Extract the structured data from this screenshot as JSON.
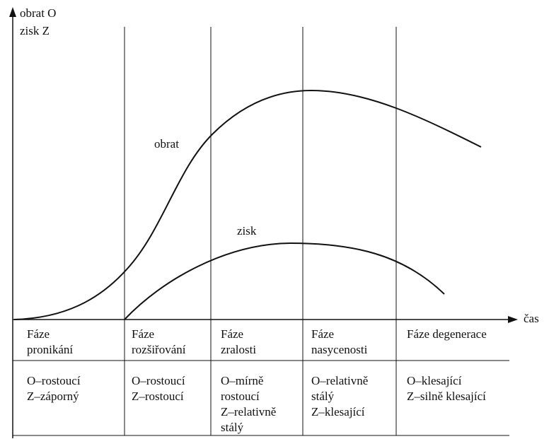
{
  "axes": {
    "y_label": [
      "obrat O",
      "zisk Z"
    ],
    "x_label": "čas"
  },
  "curves": {
    "revenue": "obrat",
    "profit": "zisk"
  },
  "phases": [
    {
      "name": [
        "Fáze",
        "pronikání"
      ],
      "description": [
        "O–rostoucí",
        "Z–záporný"
      ]
    },
    {
      "name": [
        "Fáze",
        "rozšiřování"
      ],
      "description": [
        "O–rostoucí",
        "Z–rostoucí"
      ]
    },
    {
      "name": [
        "Fáze",
        "zralosti"
      ],
      "description": [
        "O–mírně",
        "rostoucí",
        "Z–relativně",
        "stálý"
      ]
    },
    {
      "name": [
        "Fáze",
        "nasycenosti"
      ],
      "description": [
        "O–relativně",
        "stálý",
        "Z–klesající"
      ]
    },
    {
      "name": [
        "Fáze degenerace"
      ],
      "description": [
        "O–klesající",
        "Z–silně klesající"
      ]
    }
  ]
}
